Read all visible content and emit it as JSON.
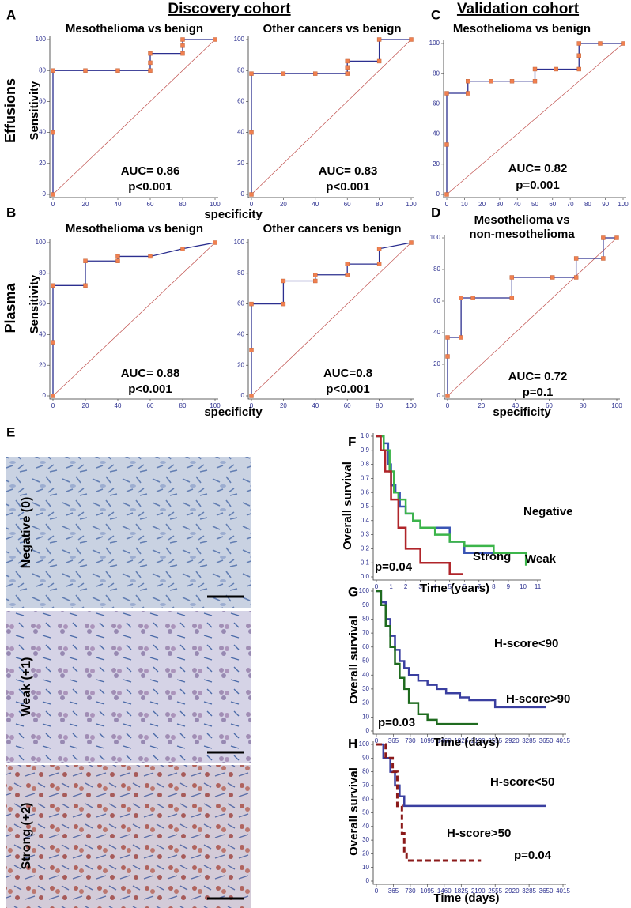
{
  "headers": [
    "Discovery cohort",
    "Validation cohort"
  ],
  "panel_letters": [
    "A",
    "B",
    "C",
    "D",
    "E",
    "F",
    "G",
    "H"
  ],
  "row_labels": [
    "Effusions",
    "Plasma"
  ],
  "ihc_labels": [
    "Negative (0)",
    "Weak (+1)",
    "Strong (+2)"
  ],
  "chart_data": [
    {
      "type": "line",
      "title": "Mesothelioma vs benign",
      "ylabel": "Sensitivity",
      "xlabel": "specificity",
      "x": [
        0,
        0,
        0,
        20,
        40,
        60,
        60,
        60,
        80,
        80,
        80,
        100
      ],
      "series": [
        {
          "color": "#2b2f8f",
          "values": [
            0,
            40,
            80,
            80,
            80,
            80,
            85,
            91,
            91,
            96,
            100,
            100
          ]
        }
      ],
      "xlim": [
        0,
        100
      ],
      "ylim": [
        0,
        100
      ],
      "xticks": [
        0,
        20,
        40,
        60,
        80,
        100
      ],
      "yticks": [
        0,
        20,
        40,
        60,
        80,
        100
      ],
      "annotations": [
        "AUC= 0.86",
        "p<0.001"
      ],
      "diagonal": true,
      "diagonal_color": "#c0504d",
      "markers": true,
      "marker_color": "#f08050"
    },
    {
      "type": "line",
      "title": "Other cancers vs benign",
      "x": [
        0,
        0,
        0,
        20,
        40,
        60,
        60,
        60,
        80,
        80,
        100
      ],
      "series": [
        {
          "color": "#2b2f8f",
          "values": [
            0,
            40,
            78,
            78,
            78,
            78,
            82,
            86,
            86,
            100,
            100
          ]
        }
      ],
      "xlim": [
        0,
        100
      ],
      "ylim": [
        0,
        100
      ],
      "xticks": [
        0,
        20,
        40,
        60,
        80,
        100
      ],
      "yticks": [
        0,
        20,
        40,
        60,
        80,
        100
      ],
      "annotations": [
        "AUC= 0.83",
        "p<0.001"
      ],
      "diagonal": true,
      "diagonal_color": "#c0504d",
      "markers": true,
      "marker_color": "#f08050"
    },
    {
      "type": "line",
      "title": "Mesothelioma vs benign",
      "x": [
        0,
        0,
        0,
        12,
        12,
        25,
        37,
        50,
        50,
        62,
        75,
        75,
        75,
        87,
        100
      ],
      "series": [
        {
          "color": "#2b2f8f",
          "values": [
            0,
            33,
            67,
            67,
            75,
            75,
            75,
            75,
            83,
            83,
            83,
            92,
            100,
            100,
            100
          ]
        }
      ],
      "xlim": [
        0,
        100
      ],
      "ylim": [
        0,
        100
      ],
      "xticks": [
        0,
        10,
        20,
        30,
        40,
        50,
        60,
        70,
        80,
        90,
        100
      ],
      "yticks": [
        0,
        20,
        40,
        60,
        80,
        100
      ],
      "annotations": [
        "AUC= 0.82",
        "p=0.001"
      ],
      "diagonal": true,
      "diagonal_color": "#c0504d",
      "markers": true,
      "marker_color": "#f08050"
    },
    {
      "type": "line",
      "title": "Mesothelioma vs benign",
      "ylabel": "Sensitivity",
      "xlabel": "specificity",
      "x": [
        0,
        0,
        0,
        20,
        20,
        40,
        40,
        60,
        80,
        100
      ],
      "series": [
        {
          "color": "#2b2f8f",
          "values": [
            0,
            35,
            72,
            72,
            88,
            88,
            91,
            91,
            96,
            100
          ]
        }
      ],
      "xlim": [
        0,
        100
      ],
      "ylim": [
        0,
        100
      ],
      "xticks": [
        0,
        20,
        40,
        60,
        80,
        100
      ],
      "yticks": [
        0,
        20,
        40,
        60,
        80,
        100
      ],
      "annotations": [
        "AUC= 0.88",
        "p<0.001"
      ],
      "diagonal": true,
      "diagonal_color": "#c0504d",
      "markers": true,
      "marker_color": "#f08050"
    },
    {
      "type": "line",
      "title": "Other cancers vs benign",
      "x": [
        0,
        0,
        0,
        20,
        20,
        40,
        40,
        60,
        60,
        80,
        80,
        100
      ],
      "series": [
        {
          "color": "#2b2f8f",
          "values": [
            0,
            30,
            60,
            60,
            75,
            75,
            79,
            79,
            86,
            86,
            96,
            100
          ]
        }
      ],
      "xlim": [
        0,
        100
      ],
      "ylim": [
        0,
        100
      ],
      "xticks": [
        0,
        20,
        40,
        60,
        80,
        100
      ],
      "yticks": [
        0,
        20,
        40,
        60,
        80,
        100
      ],
      "annotations": [
        "AUC=0.8",
        "p<0.001"
      ],
      "diagonal": true,
      "diagonal_color": "#c0504d",
      "markers": true,
      "marker_color": "#f08050"
    },
    {
      "type": "line",
      "title": [
        "Mesothelioma vs",
        "non-mesothelioma"
      ],
      "xlabel": "specificity",
      "x": [
        0,
        0,
        0,
        8,
        8,
        15,
        38,
        38,
        62,
        76,
        76,
        92,
        92,
        100
      ],
      "series": [
        {
          "color": "#2b2f8f",
          "values": [
            0,
            25,
            37,
            37,
            62,
            62,
            62,
            75,
            75,
            75,
            87,
            87,
            100,
            100
          ]
        }
      ],
      "xlim": [
        0,
        100
      ],
      "ylim": [
        0,
        100
      ],
      "xticks": [
        0,
        20,
        40,
        60,
        80,
        100
      ],
      "yticks": [
        0,
        20,
        40,
        60,
        80,
        100
      ],
      "annotations": [
        "AUC= 0.72",
        "p=0.1"
      ],
      "diagonal": true,
      "diagonal_color": "#c0504d",
      "markers": true,
      "marker_color": "#f08050"
    },
    {
      "type": "line",
      "step": true,
      "xlabel": "Time (years)",
      "ylabel": "Overall survival",
      "series": [
        {
          "name": "Negative",
          "color": "#3a55b4",
          "x": [
            0,
            0.5,
            0.8,
            1,
            1.3,
            1.6,
            2,
            2.5,
            3,
            5,
            6,
            8
          ],
          "values": [
            1,
            0.95,
            0.8,
            0.65,
            0.6,
            0.5,
            0.45,
            0.4,
            0.35,
            0.25,
            0.17,
            0.17
          ]
        },
        {
          "name": "Weak",
          "color": "#3cb54a",
          "x": [
            0,
            0.5,
            0.9,
            1.2,
            1.5,
            2,
            2.5,
            3,
            4,
            5,
            6,
            8,
            10.2
          ],
          "values": [
            1,
            0.9,
            0.75,
            0.6,
            0.55,
            0.45,
            0.4,
            0.35,
            0.3,
            0.25,
            0.22,
            0.17,
            0.08
          ]
        },
        {
          "name": "Strong",
          "color": "#b0252a",
          "x": [
            0,
            0.3,
            0.6,
            1,
            1.5,
            2,
            3,
            5,
            5.9
          ],
          "values": [
            1,
            0.9,
            0.75,
            0.55,
            0.35,
            0.2,
            0.1,
            0.02,
            0.02
          ]
        }
      ],
      "xlim": [
        0,
        11
      ],
      "ylim": [
        0,
        1
      ],
      "xticks": [
        0,
        1,
        2,
        3,
        4,
        5,
        6,
        7,
        8,
        9,
        10,
        11
      ],
      "yticks": [
        {
          "value": 0,
          "label": "0.0"
        },
        0.1,
        0.2,
        0.3,
        0.4,
        0.5,
        0.6,
        0.7,
        0.8,
        0.9,
        {
          "value": 1,
          "label": "1.0"
        }
      ],
      "annotations": [
        "p=0.04"
      ]
    },
    {
      "type": "line",
      "step": true,
      "xlabel": "Time (days)",
      "ylabel": "Overall survival",
      "series": [
        {
          "name": "H-score<90",
          "color": "#3a3fa0",
          "x": [
            0,
            100,
            200,
            300,
            400,
            500,
            600,
            700,
            900,
            1100,
            1300,
            1500,
            1800,
            2000,
            2200,
            2555,
            3650
          ],
          "values": [
            100,
            92,
            80,
            68,
            58,
            50,
            45,
            40,
            36,
            33,
            30,
            27,
            24,
            22,
            22,
            17,
            17
          ]
        },
        {
          "name": "H-score>90",
          "color": "#1f6b1f",
          "x": [
            0,
            100,
            200,
            300,
            400,
            500,
            600,
            700,
            900,
            1100,
            1300,
            1500,
            2190
          ],
          "values": [
            100,
            90,
            75,
            60,
            48,
            38,
            30,
            20,
            12,
            8,
            5,
            5,
            5
          ]
        }
      ],
      "xlim": [
        0,
        4015
      ],
      "ylim": [
        0,
        100
      ],
      "xticks": [
        0,
        365,
        730,
        1095,
        1460,
        1825,
        2190,
        2555,
        2920,
        3285,
        3650,
        4015
      ],
      "yticks": [
        0,
        10,
        20,
        30,
        40,
        50,
        60,
        70,
        80,
        90,
        100
      ],
      "annotations": [
        "p=0.03"
      ]
    },
    {
      "type": "line",
      "step": true,
      "xlabel": "Time (days)",
      "ylabel": "Overall survival",
      "series": [
        {
          "name": "H-score<50",
          "color": "#3a3fa0",
          "x": [
            0,
            150,
            300,
            400,
            500,
            600,
            3650
          ],
          "values": [
            100,
            90,
            80,
            70,
            62,
            55,
            55
          ]
        },
        {
          "name": "H-score>50",
          "color": "#8b1a1a",
          "dash": true,
          "x": [
            0,
            200,
            350,
            450,
            550,
            600,
            650,
            2250
          ],
          "values": [
            100,
            90,
            80,
            55,
            35,
            20,
            15,
            15
          ]
        }
      ],
      "xlim": [
        0,
        4015
      ],
      "ylim": [
        0,
        100
      ],
      "xticks": [
        0,
        365,
        730,
        1095,
        1460,
        1825,
        2190,
        2555,
        2920,
        3285,
        3650,
        4015
      ],
      "yticks": [
        0,
        10,
        20,
        30,
        40,
        50,
        60,
        70,
        80,
        90,
        100
      ],
      "annotations": [
        "p=0.04"
      ]
    }
  ]
}
